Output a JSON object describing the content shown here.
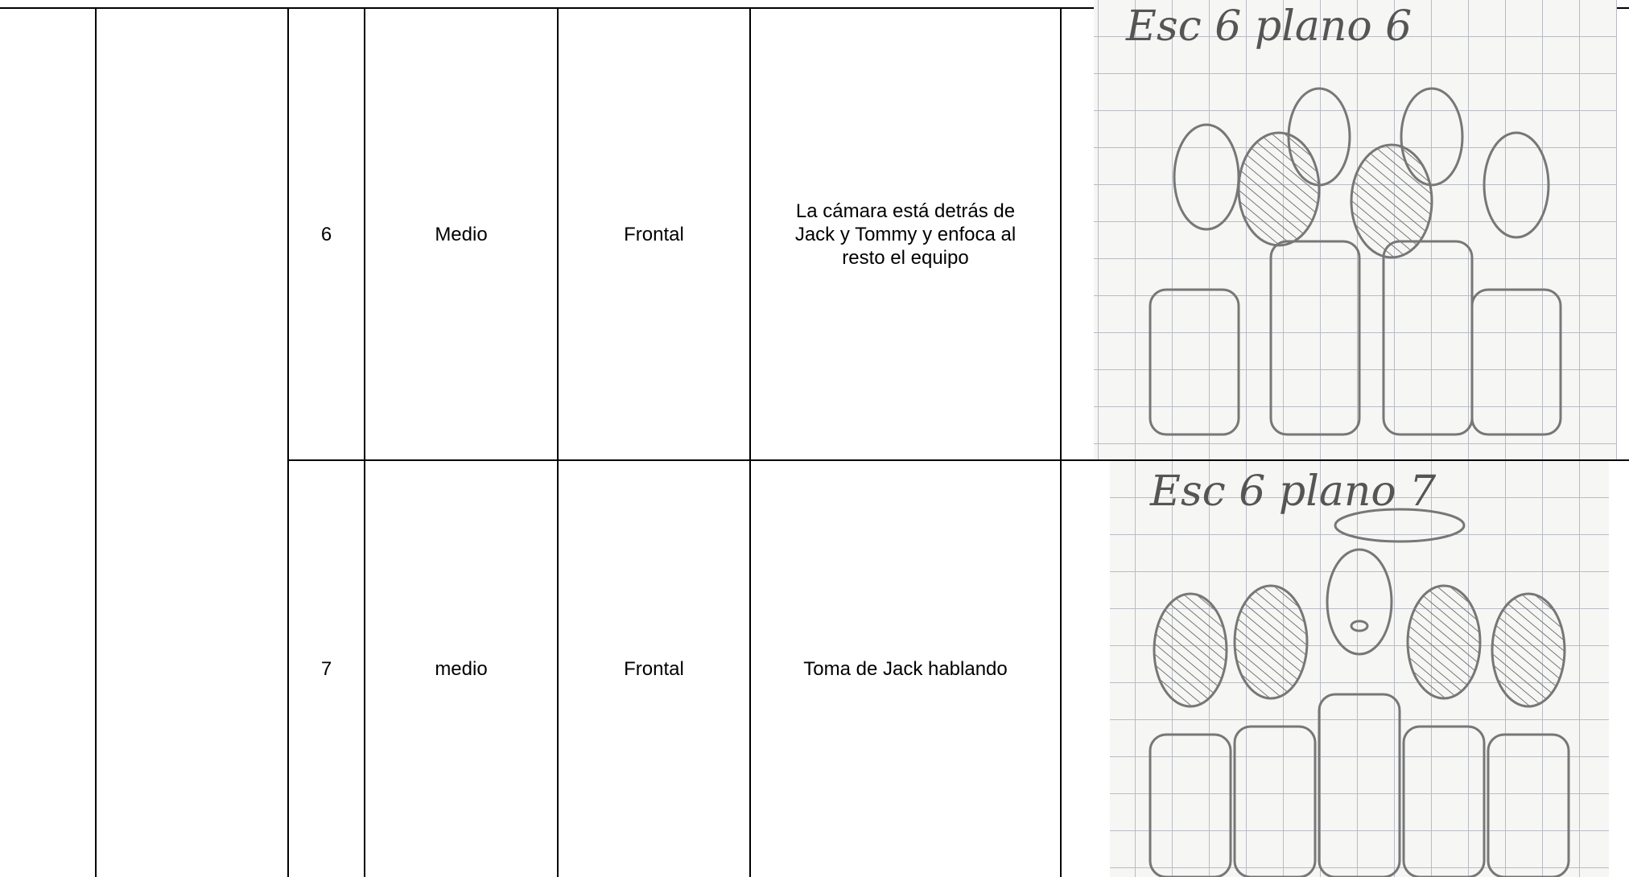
{
  "table": {
    "rows": [
      {
        "shot": "6",
        "size": "Medio",
        "angle": "Frontal",
        "description": "La cámara está detrás de Jack y Tommy y enfoca al resto el equipo",
        "sketch_caption": "Esc 6 plano 6"
      },
      {
        "shot": "7",
        "size": "medio",
        "angle": "Frontal",
        "description": "Toma de Jack hablando",
        "sketch_caption": "Esc 6 plano 7"
      }
    ]
  }
}
